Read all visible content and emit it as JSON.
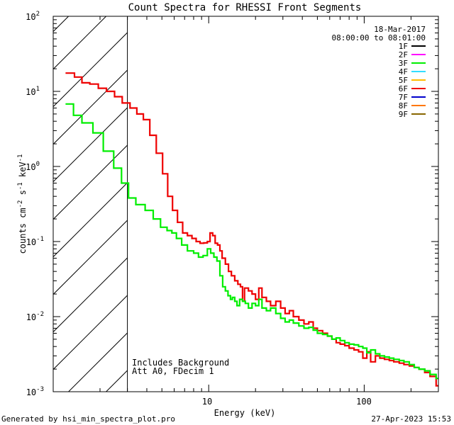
{
  "chart_data": {
    "type": "line",
    "title": "Count Spectra for RHESSI Front Segments",
    "xlabel": "Energy (keV)",
    "ylabel": "counts cm-2 s-1 keV-1",
    "ylabel_parts": {
      "base": "counts cm",
      "exp1": "-2",
      "mid": " s",
      "exp2": "-1",
      "tail": " keV",
      "exp3": "-1"
    },
    "x_scale": "log",
    "y_scale": "log",
    "xlim": [
      1.0,
      300
    ],
    "ylim": [
      0.001,
      100
    ],
    "x_tick_labels": [
      "10",
      "100"
    ],
    "y_tick_labels": [
      {
        "base": "10",
        "exp": "2",
        "value": 100
      },
      {
        "base": "10",
        "exp": "1",
        "value": 10
      },
      {
        "base": "10",
        "exp": "0",
        "value": 1
      },
      {
        "base": "10",
        "exp": "-1",
        "value": 0.1
      },
      {
        "base": "10",
        "exp": "-2",
        "value": 0.01
      },
      {
        "base": "10",
        "exp": "-3",
        "value": 0.001
      }
    ],
    "shaded_region_below_keV": 3.0,
    "date": "18-Mar-2017",
    "time_range": "08:00:00 to 08:01:00",
    "legend": [
      {
        "label": "1F",
        "color": "#000000"
      },
      {
        "label": "2F",
        "color": "#ff00ff"
      },
      {
        "label": "3F",
        "color": "#00ee00"
      },
      {
        "label": "4F",
        "color": "#33ddff"
      },
      {
        "label": "5F",
        "color": "#ffbb00"
      },
      {
        "label": "6F",
        "color": "#ee0000"
      },
      {
        "label": "7F",
        "color": "#0000cc"
      },
      {
        "label": "8F",
        "color": "#ff7700"
      },
      {
        "label": "9F",
        "color": "#886600"
      }
    ],
    "annotations": [
      "Includes Background",
      "Att A0, FDecim 1"
    ],
    "series": [
      {
        "name": "6F",
        "color": "#ee0000",
        "points": [
          [
            1.2,
            17.5
          ],
          [
            1.37,
            15.5
          ],
          [
            1.53,
            13.0
          ],
          [
            1.72,
            12.5
          ],
          [
            1.95,
            11.0
          ],
          [
            2.2,
            10.0
          ],
          [
            2.48,
            8.5
          ],
          [
            2.78,
            7.0
          ],
          [
            3.12,
            6.0
          ],
          [
            3.45,
            5.0
          ],
          [
            3.8,
            4.2
          ],
          [
            4.18,
            2.6
          ],
          [
            4.6,
            1.5
          ],
          [
            5.05,
            0.8
          ],
          [
            5.45,
            0.4
          ],
          [
            5.85,
            0.26
          ],
          [
            6.3,
            0.18
          ],
          [
            6.8,
            0.13
          ],
          [
            7.3,
            0.12
          ],
          [
            7.8,
            0.11
          ],
          [
            8.3,
            0.1
          ],
          [
            8.8,
            0.095
          ],
          [
            9.3,
            0.096
          ],
          [
            9.8,
            0.1
          ],
          [
            10.2,
            0.13
          ],
          [
            10.6,
            0.12
          ],
          [
            11.0,
            0.095
          ],
          [
            11.4,
            0.09
          ],
          [
            11.8,
            0.075
          ],
          [
            12.2,
            0.06
          ],
          [
            12.8,
            0.05
          ],
          [
            13.4,
            0.04
          ],
          [
            14.0,
            0.035
          ],
          [
            14.7,
            0.03
          ],
          [
            15.4,
            0.027
          ],
          [
            16.0,
            0.025
          ],
          [
            16.5,
            0.016
          ],
          [
            17.0,
            0.024
          ],
          [
            18.0,
            0.022
          ],
          [
            19.0,
            0.02
          ],
          [
            20.0,
            0.017
          ],
          [
            21.0,
            0.024
          ],
          [
            22.0,
            0.018
          ],
          [
            23.5,
            0.016
          ],
          [
            25.0,
            0.014
          ],
          [
            27.0,
            0.016
          ],
          [
            29.0,
            0.013
          ],
          [
            31.0,
            0.011
          ],
          [
            33.0,
            0.012
          ],
          [
            35.0,
            0.01
          ],
          [
            38.0,
            0.009
          ],
          [
            41.0,
            0.008
          ],
          [
            44.0,
            0.0085
          ],
          [
            47.0,
            0.007
          ],
          [
            50.0,
            0.0065
          ],
          [
            54.0,
            0.006
          ],
          [
            58.0,
            0.0055
          ],
          [
            62.0,
            0.005
          ],
          [
            66.0,
            0.0045
          ],
          [
            70.0,
            0.0043
          ],
          [
            75.0,
            0.0041
          ],
          [
            80.0,
            0.0038
          ],
          [
            86.0,
            0.0036
          ],
          [
            92.0,
            0.0034
          ],
          [
            98.0,
            0.0028
          ],
          [
            104.0,
            0.0034
          ],
          [
            110.0,
            0.0025
          ],
          [
            118.0,
            0.003
          ],
          [
            126.0,
            0.0028
          ],
          [
            135.0,
            0.0027
          ],
          [
            145.0,
            0.0026
          ],
          [
            155.0,
            0.0025
          ],
          [
            168.0,
            0.0024
          ],
          [
            180.0,
            0.0023
          ],
          [
            195.0,
            0.0022
          ],
          [
            210.0,
            0.0021
          ],
          [
            225.0,
            0.002
          ],
          [
            245.0,
            0.0018
          ],
          [
            265.0,
            0.0016
          ],
          [
            290.0,
            0.0012
          ]
        ]
      },
      {
        "name": "3F",
        "color": "#00ee00",
        "points": [
          [
            1.2,
            6.8
          ],
          [
            1.35,
            4.8
          ],
          [
            1.53,
            3.8
          ],
          [
            1.8,
            2.8
          ],
          [
            2.1,
            1.6
          ],
          [
            2.45,
            0.95
          ],
          [
            2.75,
            0.6
          ],
          [
            3.05,
            0.38
          ],
          [
            3.4,
            0.31
          ],
          [
            3.9,
            0.26
          ],
          [
            4.4,
            0.2
          ],
          [
            4.9,
            0.155
          ],
          [
            5.4,
            0.14
          ],
          [
            5.8,
            0.13
          ],
          [
            6.2,
            0.11
          ],
          [
            6.7,
            0.09
          ],
          [
            7.3,
            0.075
          ],
          [
            8.0,
            0.07
          ],
          [
            8.6,
            0.062
          ],
          [
            9.2,
            0.065
          ],
          [
            9.8,
            0.08
          ],
          [
            10.3,
            0.07
          ],
          [
            10.8,
            0.062
          ],
          [
            11.3,
            0.055
          ],
          [
            11.8,
            0.035
          ],
          [
            12.3,
            0.025
          ],
          [
            12.8,
            0.022
          ],
          [
            13.3,
            0.019
          ],
          [
            13.8,
            0.017
          ],
          [
            14.2,
            0.018
          ],
          [
            14.7,
            0.016
          ],
          [
            15.2,
            0.014
          ],
          [
            15.8,
            0.017
          ],
          [
            16.5,
            0.016
          ],
          [
            17.2,
            0.015
          ],
          [
            18.0,
            0.013
          ],
          [
            19.0,
            0.015
          ],
          [
            20.0,
            0.014
          ],
          [
            21.0,
            0.017
          ],
          [
            22.0,
            0.013
          ],
          [
            23.5,
            0.012
          ],
          [
            25.0,
            0.013
          ],
          [
            27.0,
            0.011
          ],
          [
            29.0,
            0.0095
          ],
          [
            31.0,
            0.0085
          ],
          [
            33.0,
            0.009
          ],
          [
            35.0,
            0.0082
          ],
          [
            38.0,
            0.0075
          ],
          [
            41.0,
            0.007
          ],
          [
            44.0,
            0.0072
          ],
          [
            47.0,
            0.0066
          ],
          [
            50.0,
            0.006
          ],
          [
            54.0,
            0.0058
          ],
          [
            58.0,
            0.0055
          ],
          [
            62.0,
            0.005
          ],
          [
            66.0,
            0.0052
          ],
          [
            70.0,
            0.0048
          ],
          [
            75.0,
            0.0045
          ],
          [
            80.0,
            0.0043
          ],
          [
            86.0,
            0.0042
          ],
          [
            92.0,
            0.004
          ],
          [
            98.0,
            0.0038
          ],
          [
            104.0,
            0.0033
          ],
          [
            110.0,
            0.0036
          ],
          [
            118.0,
            0.0032
          ],
          [
            126.0,
            0.003
          ],
          [
            135.0,
            0.0029
          ],
          [
            145.0,
            0.0028
          ],
          [
            155.0,
            0.0027
          ],
          [
            168.0,
            0.0026
          ],
          [
            180.0,
            0.0025
          ],
          [
            195.0,
            0.0023
          ],
          [
            210.0,
            0.0021
          ],
          [
            225.0,
            0.002
          ],
          [
            245.0,
            0.0019
          ],
          [
            265.0,
            0.0017
          ],
          [
            290.0,
            0.0015
          ]
        ]
      }
    ]
  },
  "footer": {
    "generated_by": "Generated by hsi_min_spectra_plot.pro",
    "timestamp": "27-Apr-2023 15:53"
  }
}
